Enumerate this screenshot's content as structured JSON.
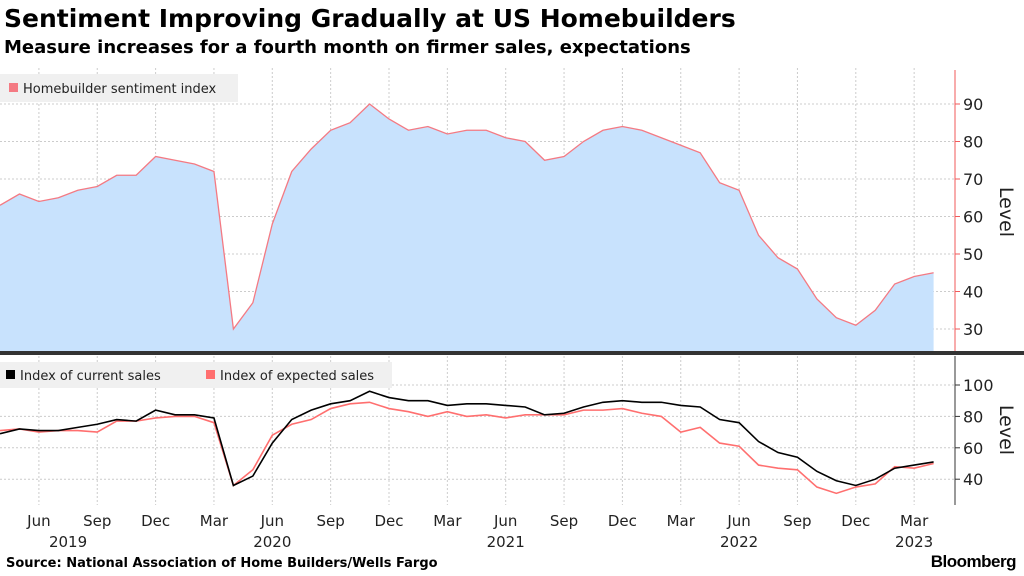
{
  "title": "Sentiment Improving Gradually at US Homebuilders",
  "subtitle": "Measure increases for a fourth month on firmer sales, expectations",
  "source": "Source: National Association of Home Builders/Wells Fargo",
  "brand": "Bloomberg",
  "colors": {
    "area": "#c8e2fd",
    "sentiment": "#f47a83",
    "current": "#000000",
    "expected": "#ff6f6f",
    "axis_top": "#f05a5a"
  },
  "chart_data": [
    {
      "type": "area",
      "title": "",
      "ylabel": "Level",
      "ylim": [
        24,
        100
      ],
      "yticks": [
        30,
        40,
        50,
        60,
        70,
        80,
        90
      ],
      "grid": true,
      "legend": "top-left",
      "series": [
        {
          "name": "Homebuilder sentiment index",
          "values": [
            63,
            66,
            64,
            65,
            67,
            68,
            71,
            71,
            76,
            75,
            74,
            72,
            30,
            37,
            58,
            72,
            78,
            83,
            85,
            90,
            86,
            83,
            84,
            82,
            83,
            83,
            81,
            80,
            75,
            76,
            80,
            83,
            84,
            83,
            81,
            79,
            77,
            69,
            67,
            55,
            49,
            46,
            38,
            33,
            31,
            35,
            42,
            44,
            45
          ]
        }
      ]
    },
    {
      "type": "line",
      "ylabel": "Level",
      "ylim": [
        25,
        120
      ],
      "yticks": [
        40,
        60,
        80,
        100
      ],
      "grid": true,
      "legend": "top-left",
      "x_start": "2019-04",
      "x_end": "2023-04",
      "xticks": [
        "Jun",
        "Sep",
        "Dec",
        "Mar",
        "Jun",
        "Sep",
        "Dec",
        "Mar",
        "Jun",
        "Sep",
        "Dec",
        "Mar",
        "Jun",
        "Sep",
        "Dec",
        "Mar"
      ],
      "xtick_month_index": [
        2,
        5,
        8,
        11,
        14,
        17,
        20,
        23,
        26,
        29,
        32,
        35,
        38,
        41,
        44,
        47
      ],
      "years": [
        "2019",
        "2020",
        "2021",
        "2022",
        "2023"
      ],
      "year_month_index": [
        3.5,
        14,
        26,
        38,
        47
      ],
      "series": [
        {
          "name": "Index of current sales",
          "values": [
            69,
            72,
            71,
            71,
            73,
            75,
            78,
            77,
            84,
            81,
            81,
            79,
            36,
            42,
            63,
            78,
            84,
            88,
            90,
            96,
            92,
            90,
            90,
            87,
            88,
            88,
            87,
            86,
            81,
            82,
            86,
            89,
            90,
            89,
            89,
            87,
            86,
            78,
            76,
            64,
            57,
            54,
            45,
            39,
            36,
            40,
            47,
            49,
            51
          ]
        },
        {
          "name": "Index of expected sales",
          "values": [
            71,
            72,
            70,
            71,
            71,
            70,
            77,
            77,
            79,
            80,
            80,
            76,
            36,
            46,
            68,
            75,
            78,
            85,
            88,
            89,
            85,
            83,
            80,
            83,
            80,
            81,
            79,
            81,
            81,
            81,
            84,
            84,
            85,
            82,
            80,
            70,
            73,
            63,
            61,
            49,
            47,
            46,
            35,
            31,
            35,
            37,
            48,
            47,
            50
          ]
        }
      ]
    }
  ]
}
